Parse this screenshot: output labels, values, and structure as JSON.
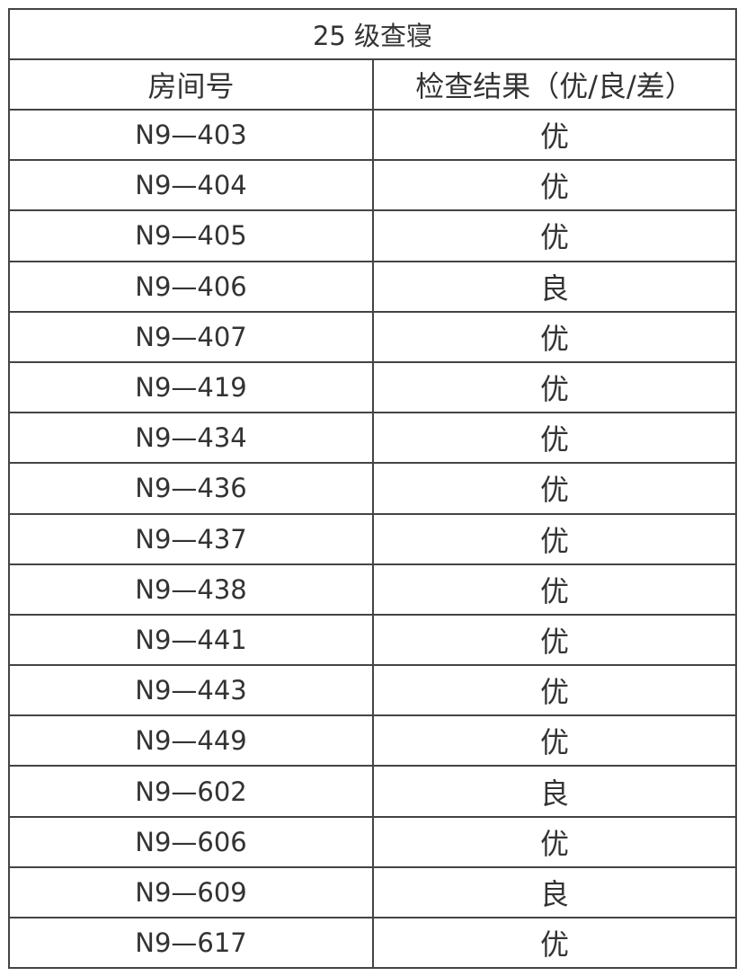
{
  "title": "25 级查寝",
  "columns": [
    "房间号",
    "检查结果（优/良/差）"
  ],
  "rows": [
    {
      "room": "N9—403",
      "result": "优"
    },
    {
      "room": "N9—404",
      "result": "优"
    },
    {
      "room": "N9—405",
      "result": "优"
    },
    {
      "room": "N9—406",
      "result": "良"
    },
    {
      "room": "N9—407",
      "result": "优"
    },
    {
      "room": "N9—419",
      "result": "优"
    },
    {
      "room": "N9—434",
      "result": "优"
    },
    {
      "room": "N9—436",
      "result": "优"
    },
    {
      "room": "N9—437",
      "result": "优"
    },
    {
      "room": "N9—438",
      "result": "优"
    },
    {
      "room": "N9—441",
      "result": "优"
    },
    {
      "room": "N9—443",
      "result": "优"
    },
    {
      "room": "N9—449",
      "result": "优"
    },
    {
      "room": "N9—602",
      "result": "良"
    },
    {
      "room": "N9—606",
      "result": "优"
    },
    {
      "room": "N9—609",
      "result": "良"
    },
    {
      "room": "N9—617",
      "result": "优"
    }
  ]
}
